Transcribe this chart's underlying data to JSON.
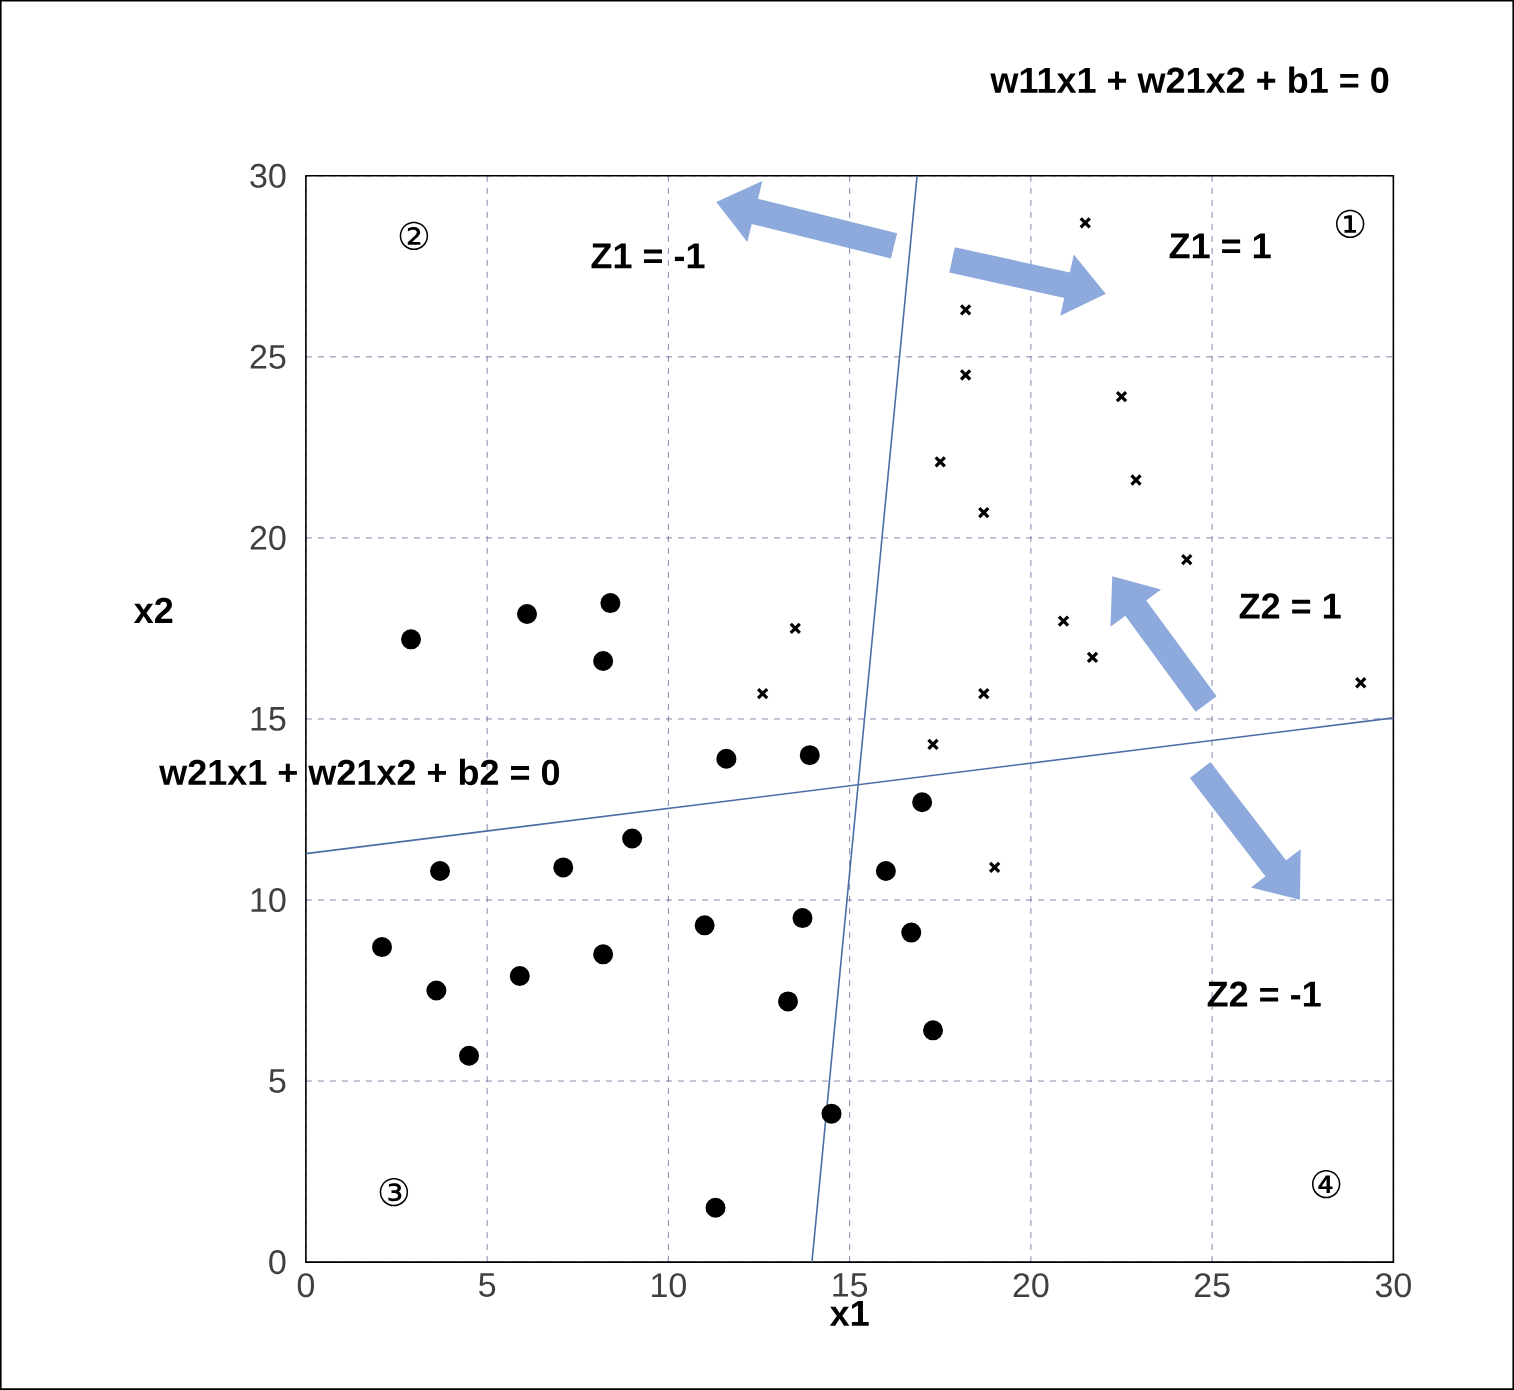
{
  "chart_data": {
    "type": "scatter",
    "xlabel": "x1",
    "ylabel": "x2",
    "xlim": [
      0,
      30
    ],
    "ylim": [
      0,
      30
    ],
    "xticks": [
      0,
      5,
      10,
      15,
      20,
      25,
      30
    ],
    "yticks": [
      0,
      5,
      10,
      15,
      20,
      25,
      30
    ],
    "grid": true,
    "series": [
      {
        "marker": "circle",
        "color": "#000000",
        "x": [
          2.9,
          6.1,
          8.4,
          8.2,
          11.6,
          13.9,
          17.0,
          9.0,
          3.7,
          7.1,
          16.0,
          2.1,
          11.0,
          13.7,
          16.7,
          8.2,
          5.9,
          3.6,
          13.3,
          17.3,
          4.5,
          14.5,
          11.3
        ],
        "values": [
          17.2,
          17.9,
          18.2,
          16.6,
          13.9,
          14.0,
          12.7,
          11.7,
          10.8,
          10.9,
          10.8,
          8.7,
          9.3,
          9.5,
          9.1,
          8.5,
          7.9,
          7.5,
          7.2,
          6.4,
          5.7,
          4.1,
          1.5
        ]
      },
      {
        "marker": "cross",
        "color": "#000000",
        "x": [
          21.5,
          18.2,
          18.2,
          22.5,
          17.5,
          22.9,
          18.7,
          24.3,
          20.9,
          21.7,
          13.5,
          12.6,
          18.7,
          29.1,
          17.3,
          19.0
        ],
        "values": [
          28.7,
          26.3,
          24.5,
          23.9,
          22.1,
          21.6,
          20.7,
          19.4,
          17.7,
          16.7,
          17.5,
          15.7,
          15.7,
          16.0,
          14.3,
          10.9
        ]
      },
      {
        "type": "line",
        "color": "#4a6fa5",
        "x": [
          13.96,
          16.86
        ],
        "values": [
          0,
          30
        ]
      },
      {
        "type": "line",
        "color": "#4a6fa5",
        "x": [
          0,
          30
        ],
        "values": [
          11.28,
          15.03
        ]
      }
    ],
    "annotations": [
      "w11x1 + w21x2 + b1 = 0",
      "w21x1 + w21x2 + b2 = 0",
      "Z1 = -1",
      "Z1 = 1",
      "Z2 = 1",
      "Z2 = -1",
      "①",
      "②",
      "③",
      "④"
    ]
  }
}
